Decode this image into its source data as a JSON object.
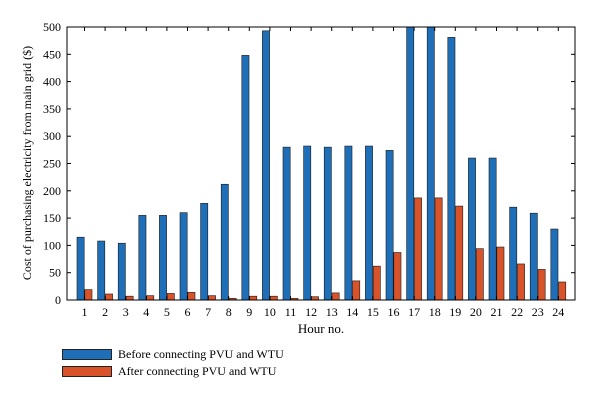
{
  "chart_data": {
    "type": "bar",
    "title": "",
    "xlabel": "Hour no.",
    "ylabel": "Cost of purchasing electricity from main grid ($)",
    "ylim": [
      0,
      500
    ],
    "yticks": [
      0,
      50,
      100,
      150,
      200,
      250,
      300,
      350,
      400,
      450,
      500
    ],
    "categories": [
      "1",
      "2",
      "3",
      "4",
      "5",
      "6",
      "7",
      "8",
      "9",
      "10",
      "11",
      "12",
      "13",
      "14",
      "15",
      "16",
      "17",
      "18",
      "19",
      "20",
      "21",
      "22",
      "23",
      "24"
    ],
    "series": [
      {
        "name": "Before connecting PVU and WTU",
        "color": "#1f6fb8",
        "values": [
          115,
          108,
          104,
          155,
          155,
          160,
          177,
          212,
          448,
          493,
          280,
          282,
          280,
          282,
          282,
          274,
          500,
          500,
          481,
          260,
          260,
          170,
          159,
          130
        ]
      },
      {
        "name": "After connecting PVU and WTU",
        "color": "#d8532a",
        "values": [
          19,
          11,
          7,
          8,
          12,
          14,
          8,
          3,
          7,
          7,
          3,
          6,
          13,
          35,
          62,
          87,
          187,
          187,
          172,
          94,
          97,
          66,
          56,
          33
        ]
      }
    ],
    "grid": false,
    "legend_position": "bottom-left"
  }
}
